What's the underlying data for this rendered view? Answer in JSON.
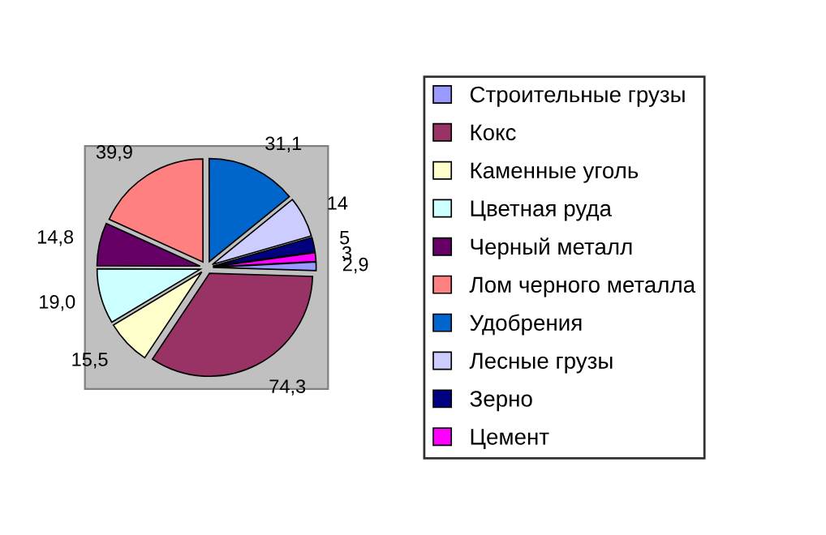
{
  "chart_data": {
    "type": "pie",
    "categories": [
      "Строительные грузы",
      "Кокс",
      "Каменные уголь",
      "Цветная руда",
      "Черный металл",
      "Лом черного металла",
      "Удобрения",
      "Лесные грузы",
      "Зерно",
      "Цемент"
    ],
    "values": [
      2.9,
      74.3,
      15.5,
      19.0,
      14.8,
      39.9,
      31.1,
      14,
      5,
      3
    ],
    "value_labels": [
      "2,9",
      "74,3",
      "15,5",
      "19,0",
      "14,8",
      "39,9",
      "31,1",
      "14",
      "5",
      "3"
    ],
    "colors": [
      "#9999ff",
      "#993366",
      "#ffffcc",
      "#ccffff",
      "#660066",
      "#ff8080",
      "#0066cc",
      "#ccccff",
      "#000080",
      "#ff00ff"
    ],
    "legend": "right"
  }
}
